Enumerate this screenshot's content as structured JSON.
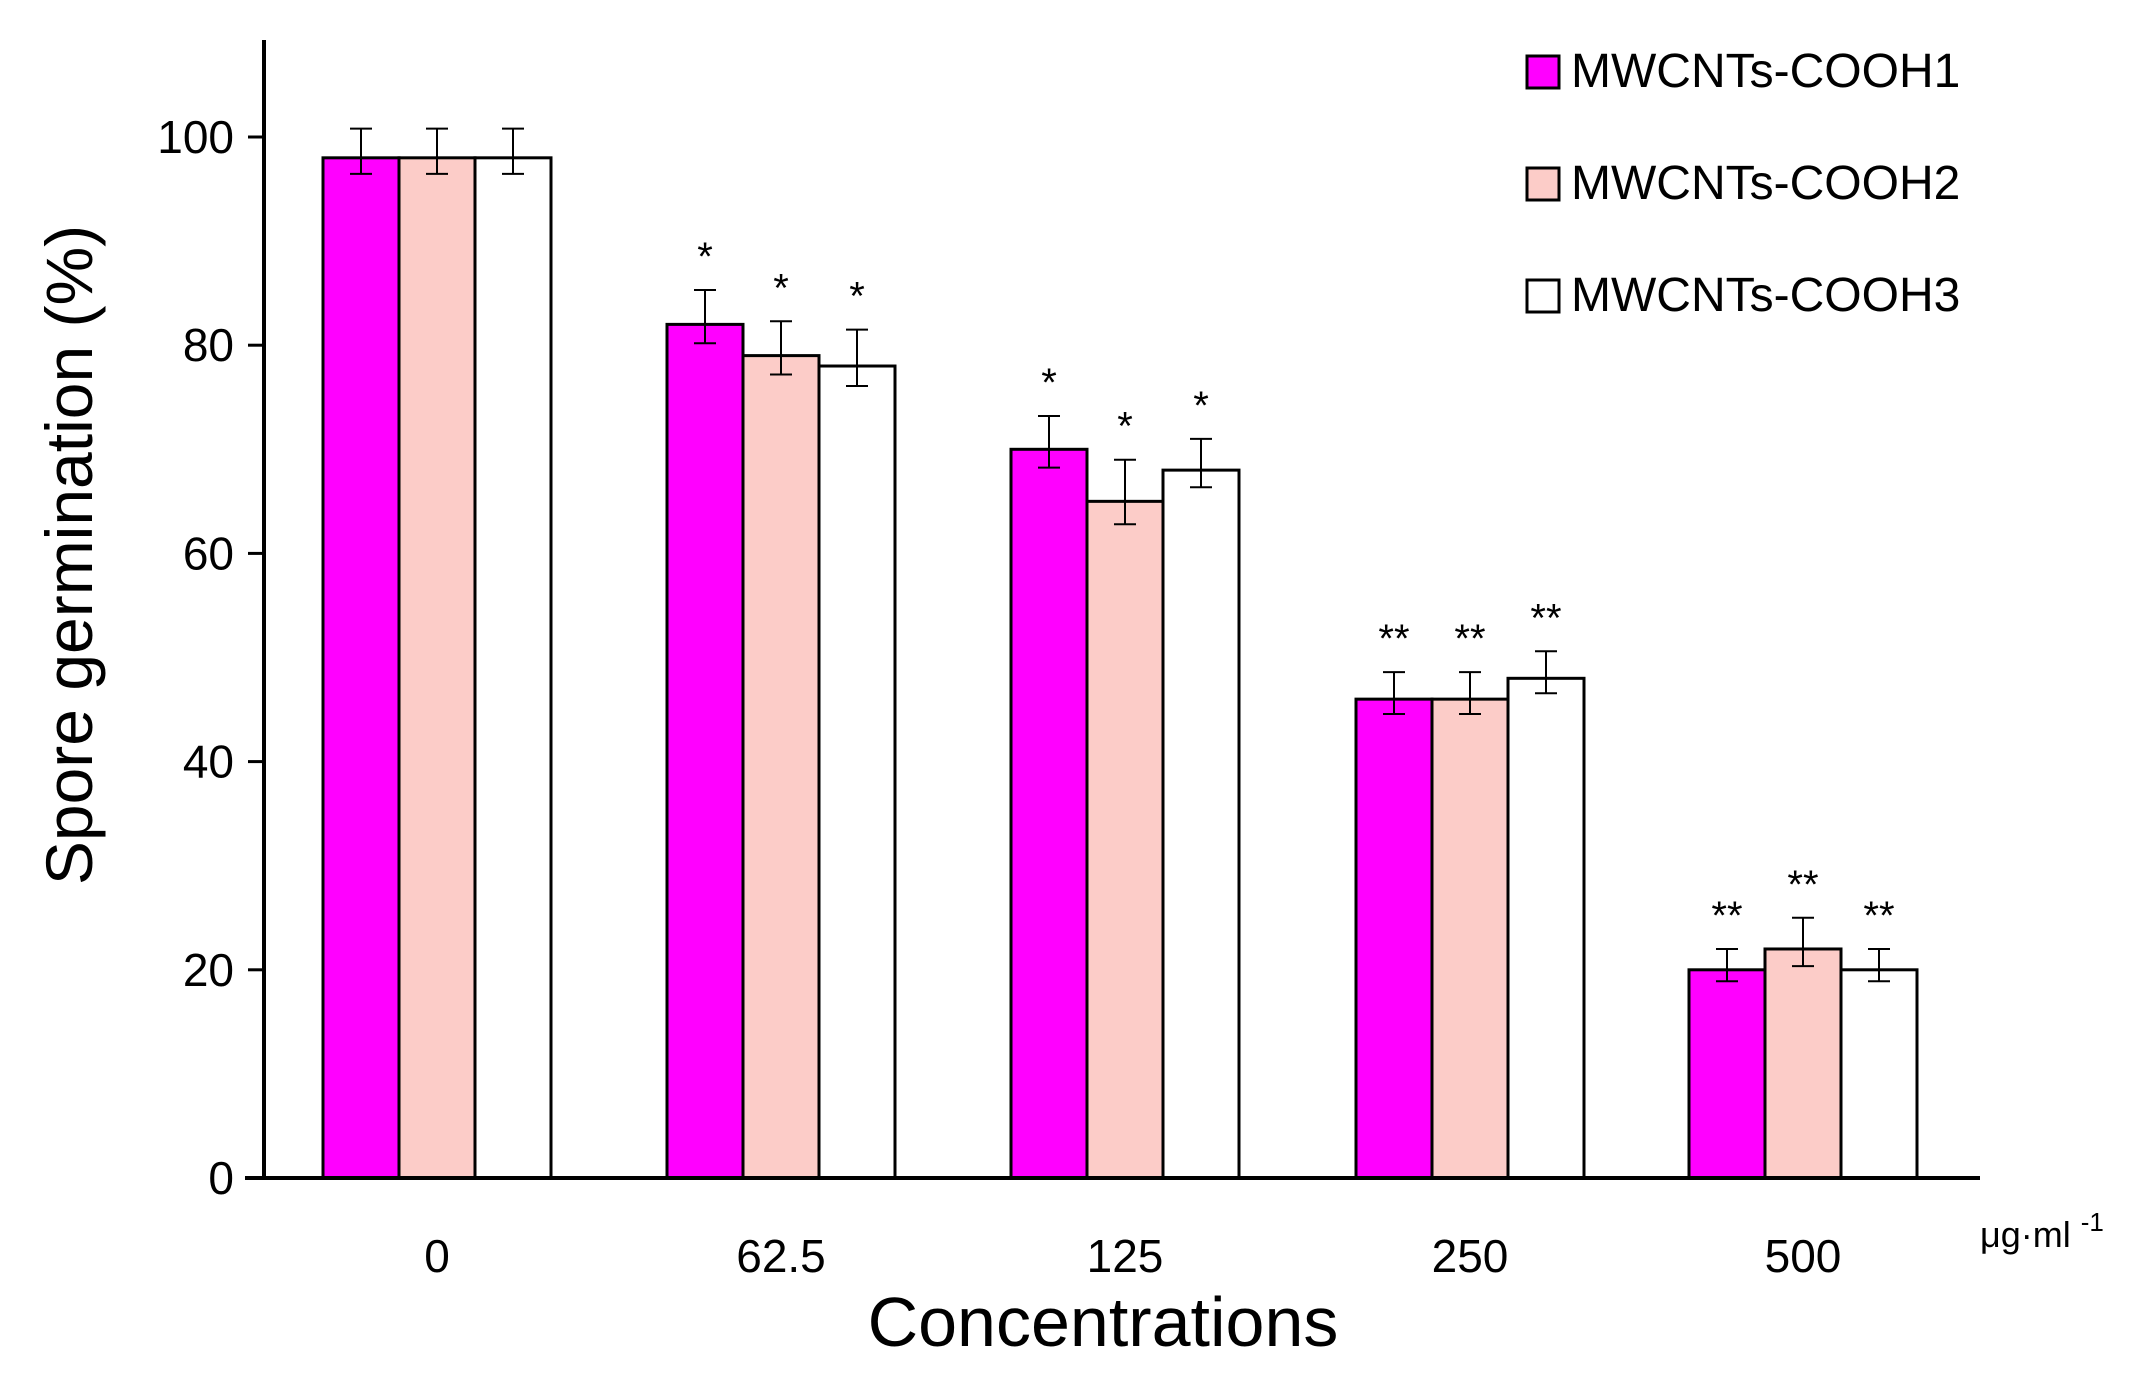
{
  "chart_data": {
    "type": "bar",
    "title": "",
    "xlabel": "Concentrations",
    "x_unit": {
      "base": "μg·ml",
      "sup": "-1"
    },
    "ylabel": "Spore germination (%)",
    "ylim": [
      0,
      110
    ],
    "yticks": [
      0,
      20,
      40,
      60,
      80,
      100
    ],
    "grid": false,
    "legend_position": "top-right",
    "categories": [
      "0",
      "62.5",
      "125",
      "250",
      "500"
    ],
    "series": [
      {
        "name": "MWCNTs-COOH1",
        "color": "#ff00ff",
        "values": [
          98,
          82,
          70,
          46,
          20
        ],
        "errors": [
          2.8,
          3.3,
          3.2,
          2.6,
          2.0
        ],
        "significance": [
          "",
          "*",
          "*",
          "**",
          "**"
        ]
      },
      {
        "name": "MWCNTs-COOH2",
        "color": "#fcccc8",
        "values": [
          98,
          79,
          65,
          46,
          22
        ],
        "errors": [
          2.8,
          3.3,
          4.0,
          2.6,
          3.0
        ],
        "significance": [
          "",
          "*",
          "*",
          "**",
          "**"
        ]
      },
      {
        "name": "MWCNTs-COOH3",
        "color": "#ffffff",
        "values": [
          98,
          78,
          68,
          48,
          20
        ],
        "errors": [
          2.8,
          3.5,
          3.0,
          2.6,
          2.0
        ],
        "significance": [
          "",
          "*",
          "*",
          "**",
          "**"
        ]
      }
    ]
  }
}
